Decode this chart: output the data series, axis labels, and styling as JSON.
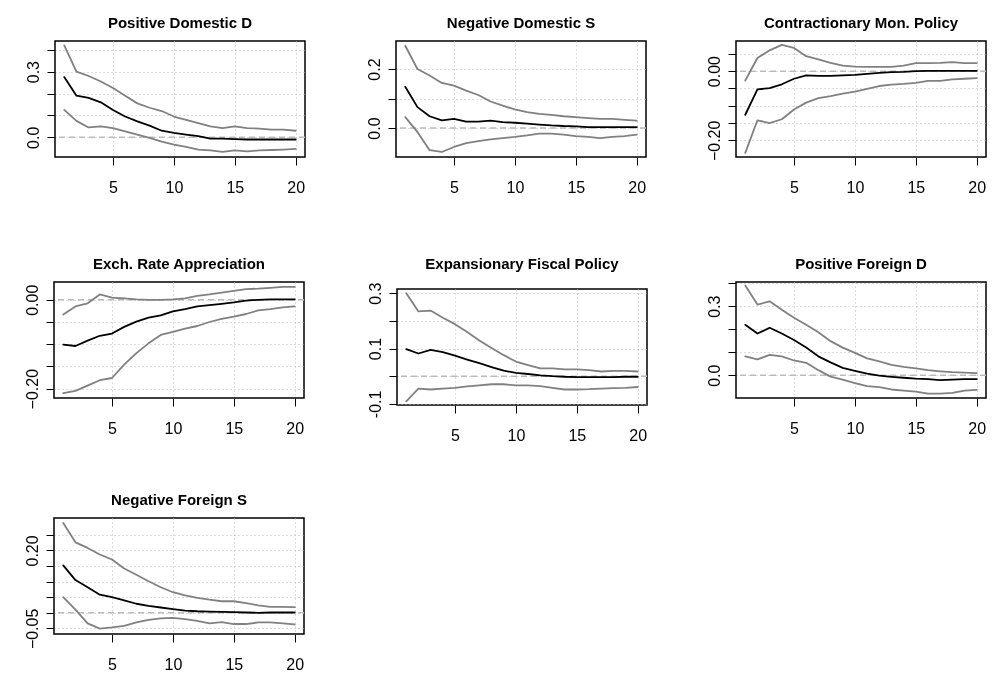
{
  "chart_data": [
    {
      "type": "line",
      "title": "Positive Domestic D",
      "x": [
        1,
        2,
        3,
        4,
        5,
        6,
        7,
        8,
        9,
        10,
        11,
        12,
        13,
        14,
        15,
        16,
        17,
        18,
        19,
        20
      ],
      "xlim": [
        0.24,
        20.76
      ],
      "xticks": [
        5,
        10,
        15,
        20
      ],
      "ylim": [
        -0.09,
        0.44
      ],
      "yticks": [
        {
          "value": 0,
          "label": "0.0"
        },
        {
          "value": 0.1,
          "label": null
        },
        {
          "value": 0.2,
          "label": null
        },
        0.3,
        {
          "value": 0.4,
          "label": null
        }
      ],
      "grid": true,
      "ref_lines": [
        {
          "axis": "y",
          "value": 0,
          "color": "#bbbbbb",
          "line_style": "dashed"
        }
      ],
      "series": [
        {
          "color": "#808080",
          "values": [
            0.42,
            0.3,
            0.28,
            0.255,
            0.225,
            0.19,
            0.155,
            0.135,
            0.12,
            0.095,
            0.08,
            0.065,
            0.05,
            0.042,
            0.05,
            0.042,
            0.04,
            0.035,
            0.035,
            0.03
          ]
        },
        {
          "color": "#000000",
          "values": [
            0.275,
            0.19,
            0.18,
            0.16,
            0.125,
            0.095,
            0.073,
            0.053,
            0.03,
            0.02,
            0.012,
            0.005,
            -0.006,
            -0.006,
            -0.008,
            -0.01,
            -0.01,
            -0.01,
            -0.01,
            -0.01
          ]
        },
        {
          "color": "#808080",
          "values": [
            0.125,
            0.075,
            0.045,
            0.05,
            0.042,
            0.027,
            0.012,
            -0.003,
            -0.02,
            -0.033,
            -0.044,
            -0.056,
            -0.06,
            -0.067,
            -0.06,
            -0.064,
            -0.06,
            -0.058,
            -0.056,
            -0.053
          ]
        }
      ]
    },
    {
      "type": "line",
      "title": "Negative Domestic S",
      "x": [
        1,
        2,
        3,
        4,
        5,
        6,
        7,
        8,
        9,
        10,
        11,
        12,
        13,
        14,
        15,
        16,
        17,
        18,
        19,
        20
      ],
      "xlim": [
        0.24,
        20.76
      ],
      "xticks": [
        5,
        10,
        15,
        20
      ],
      "ylim": [
        -0.098,
        0.295
      ],
      "yticks": [
        {
          "value": 0,
          "label": "0.0"
        },
        {
          "value": 0.1,
          "label": null
        },
        0.2
      ],
      "grid": true,
      "ref_lines": [
        {
          "axis": "y",
          "value": 0,
          "color": "#bbbbbb",
          "line_style": "dashed"
        }
      ],
      "series": [
        {
          "color": "#808080",
          "values": [
            0.279,
            0.2,
            0.178,
            0.153,
            0.144,
            0.127,
            0.112,
            0.09,
            0.076,
            0.063,
            0.054,
            0.048,
            0.045,
            0.04,
            0.037,
            0.034,
            0.031,
            0.031,
            0.028,
            0.025
          ]
        },
        {
          "color": "#000000",
          "values": [
            0.14,
            0.071,
            0.04,
            0.026,
            0.031,
            0.022,
            0.022,
            0.025,
            0.02,
            0.018,
            0.015,
            0.012,
            0.009,
            0.007,
            0.006,
            0.003,
            0.003,
            0.003,
            0.003,
            0.003
          ]
        },
        {
          "color": "#808080",
          "values": [
            0.037,
            -0.013,
            -0.075,
            -0.081,
            -0.064,
            -0.051,
            -0.044,
            -0.038,
            -0.034,
            -0.03,
            -0.025,
            -0.019,
            -0.019,
            -0.022,
            -0.027,
            -0.03,
            -0.034,
            -0.03,
            -0.027,
            -0.022
          ]
        }
      ]
    },
    {
      "type": "line",
      "title": "Contractionary Mon. Policy",
      "x": [
        1,
        2,
        3,
        4,
        5,
        6,
        7,
        8,
        9,
        10,
        11,
        12,
        13,
        14,
        15,
        16,
        17,
        18,
        19,
        20
      ],
      "xlim": [
        0.24,
        20.76
      ],
      "xticks": [
        5,
        10,
        15,
        20
      ],
      "ylim": [
        -0.248,
        0.087
      ],
      "yticks": [
        {
          "value": 0.05,
          "label": null
        },
        {
          "value": 0,
          "label": "0.00"
        },
        {
          "value": -0.05,
          "label": null
        },
        {
          "value": -0.1,
          "label": null
        },
        {
          "value": -0.15,
          "label": null
        },
        {
          "value": -0.2,
          "label": "−0.20"
        }
      ],
      "grid": true,
      "ref_lines": [
        {
          "axis": "y",
          "value": 0,
          "color": "#bbbbbb",
          "line_style": "dashed"
        }
      ],
      "series": [
        {
          "color": "#808080",
          "values": [
            -0.027,
            0.038,
            0.06,
            0.076,
            0.067,
            0.043,
            0.034,
            0.024,
            0.016,
            0.013,
            0.012,
            0.012,
            0.012,
            0.016,
            0.023,
            0.023,
            0.024,
            0.026,
            0.023,
            0.023
          ]
        },
        {
          "color": "#000000",
          "values": [
            -0.126,
            -0.053,
            -0.049,
            -0.038,
            -0.022,
            -0.012,
            -0.014,
            -0.014,
            -0.012,
            -0.011,
            -0.008,
            -0.005,
            -0.003,
            -0.002,
            0,
            0.001,
            0.001,
            0.001,
            0.001,
            0.001
          ]
        },
        {
          "color": "#808080",
          "values": [
            -0.236,
            -0.142,
            -0.15,
            -0.139,
            -0.111,
            -0.091,
            -0.078,
            -0.072,
            -0.065,
            -0.059,
            -0.051,
            -0.043,
            -0.039,
            -0.037,
            -0.034,
            -0.028,
            -0.028,
            -0.024,
            -0.022,
            -0.02
          ]
        }
      ]
    },
    {
      "type": "line",
      "title": "Exch. Rate Appreciation",
      "x": [
        1,
        2,
        3,
        4,
        5,
        6,
        7,
        8,
        9,
        10,
        11,
        12,
        13,
        14,
        15,
        16,
        17,
        18,
        19,
        20
      ],
      "xlim": [
        0.24,
        20.76
      ],
      "xticks": [
        5,
        10,
        15,
        20
      ],
      "ylim": [
        -0.221,
        0.04
      ],
      "yticks": [
        {
          "value": 0,
          "label": "0.00"
        },
        {
          "value": -0.05,
          "label": null
        },
        {
          "value": -0.1,
          "label": null
        },
        {
          "value": -0.15,
          "label": null
        },
        {
          "value": -0.2,
          "label": "−0.20"
        }
      ],
      "grid": true,
      "ref_lines": [
        {
          "axis": "y",
          "value": 0,
          "color": "#bbbbbb",
          "line_style": "dashed"
        }
      ],
      "series": [
        {
          "color": "#808080",
          "values": [
            -0.033,
            -0.015,
            -0.008,
            0.012,
            0.005,
            0.003,
            0.001,
            0,
            0,
            0.001,
            0.003,
            0.009,
            0.012,
            0.016,
            0.02,
            0.024,
            0.025,
            0.027,
            0.029,
            0.029
          ]
        },
        {
          "color": "#000000",
          "values": [
            -0.101,
            -0.104,
            -0.092,
            -0.081,
            -0.076,
            -0.061,
            -0.049,
            -0.04,
            -0.035,
            -0.026,
            -0.021,
            -0.015,
            -0.012,
            -0.009,
            -0.006,
            -0.002,
            0,
            0.001,
            0.001,
            0.001
          ]
        },
        {
          "color": "#808080",
          "values": [
            -0.21,
            -0.205,
            -0.193,
            -0.181,
            -0.176,
            -0.146,
            -0.12,
            -0.098,
            -0.079,
            -0.072,
            -0.065,
            -0.059,
            -0.05,
            -0.043,
            -0.038,
            -0.032,
            -0.024,
            -0.021,
            -0.017,
            -0.015
          ]
        }
      ]
    },
    {
      "type": "line",
      "title": "Expansionary Fiscal Policy",
      "x": [
        1,
        2,
        3,
        4,
        5,
        6,
        7,
        8,
        9,
        10,
        11,
        12,
        13,
        14,
        15,
        16,
        17,
        18,
        19,
        20
      ],
      "xlim": [
        0.24,
        20.76
      ],
      "xticks": [
        5,
        10,
        15,
        20
      ],
      "ylim": [
        -0.104,
        0.315
      ],
      "yticks": [
        0.3,
        {
          "value": 0.2,
          "label": null
        },
        0.1,
        {
          "value": 0,
          "label": null
        },
        -0.1
      ],
      "grid": true,
      "ref_lines": [
        {
          "axis": "y",
          "value": 0,
          "color": "#bbbbbb",
          "line_style": "dashed"
        }
      ],
      "series": [
        {
          "color": "#808080",
          "values": [
            0.3,
            0.234,
            0.237,
            0.211,
            0.188,
            0.16,
            0.129,
            0.102,
            0.076,
            0.053,
            0.04,
            0.028,
            0.028,
            0.025,
            0.025,
            0.022,
            0.017,
            0.019,
            0.019,
            0.017
          ]
        },
        {
          "color": "#000000",
          "values": [
            0.098,
            0.082,
            0.095,
            0.087,
            0.074,
            0.06,
            0.047,
            0.033,
            0.02,
            0.012,
            0.008,
            0.003,
            0,
            -0.002,
            -0.003,
            -0.003,
            -0.003,
            -0.003,
            -0.002,
            -0.002
          ]
        },
        {
          "color": "#808080",
          "values": [
            -0.091,
            -0.045,
            -0.048,
            -0.045,
            -0.042,
            -0.037,
            -0.033,
            -0.029,
            -0.029,
            -0.033,
            -0.033,
            -0.036,
            -0.042,
            -0.048,
            -0.048,
            -0.047,
            -0.045,
            -0.043,
            -0.042,
            -0.039
          ]
        }
      ]
    },
    {
      "type": "line",
      "title": "Positive Foreign D",
      "x": [
        1,
        2,
        3,
        4,
        5,
        6,
        7,
        8,
        9,
        10,
        11,
        12,
        13,
        14,
        15,
        16,
        17,
        18,
        19,
        20
      ],
      "xlim": [
        0.24,
        20.76
      ],
      "xticks": [
        5,
        10,
        15,
        20
      ],
      "ylim": [
        -0.099,
        0.405
      ],
      "yticks": [
        {
          "value": 0,
          "label": "0.0"
        },
        {
          "value": 0.1,
          "label": null
        },
        {
          "value": 0.2,
          "label": null
        },
        0.3,
        {
          "value": 0.4,
          "label": null
        }
      ],
      "grid": true,
      "ref_lines": [
        {
          "axis": "y",
          "value": 0,
          "color": "#bbbbbb",
          "line_style": "dashed"
        }
      ],
      "series": [
        {
          "color": "#808080",
          "values": [
            0.39,
            0.307,
            0.321,
            0.284,
            0.25,
            0.219,
            0.187,
            0.148,
            0.12,
            0.097,
            0.073,
            0.06,
            0.045,
            0.036,
            0.03,
            0.022,
            0.017,
            0.013,
            0.011,
            0.009
          ]
        },
        {
          "color": "#000000",
          "values": [
            0.219,
            0.181,
            0.206,
            0.181,
            0.153,
            0.12,
            0.082,
            0.056,
            0.032,
            0.019,
            0.007,
            -0.002,
            -0.007,
            -0.011,
            -0.015,
            -0.017,
            -0.021,
            -0.019,
            -0.017,
            -0.017
          ]
        },
        {
          "color": "#808080",
          "values": [
            0.082,
            0.069,
            0.088,
            0.082,
            0.064,
            0.054,
            0.022,
            -0.006,
            -0.019,
            -0.034,
            -0.047,
            -0.052,
            -0.062,
            -0.067,
            -0.071,
            -0.08,
            -0.08,
            -0.077,
            -0.067,
            -0.064
          ]
        }
      ]
    },
    {
      "type": "line",
      "title": "Negative Foreign S",
      "x": [
        1,
        2,
        3,
        4,
        5,
        6,
        7,
        8,
        9,
        10,
        11,
        12,
        13,
        14,
        15,
        16,
        17,
        18,
        19,
        20
      ],
      "xlim": [
        0.24,
        20.76
      ],
      "xticks": [
        5,
        10,
        15,
        20
      ],
      "ylim": [
        -0.068,
        0.304
      ],
      "yticks": [
        {
          "value": 0.25,
          "label": null
        },
        {
          "value": 0.2,
          "label": "0.20"
        },
        {
          "value": 0.15,
          "label": null
        },
        {
          "value": 0.1,
          "label": null
        },
        {
          "value": 0.05,
          "label": null
        },
        {
          "value": 0,
          "label": null
        },
        {
          "value": -0.05,
          "label": "−0.05"
        }
      ],
      "grid": true,
      "ref_lines": [
        {
          "axis": "y",
          "value": 0,
          "color": "#bbbbbb",
          "line_style": "dashed"
        }
      ],
      "series": [
        {
          "color": "#808080",
          "values": [
            0.288,
            0.226,
            0.208,
            0.187,
            0.171,
            0.142,
            0.122,
            0.101,
            0.082,
            0.066,
            0.056,
            0.048,
            0.042,
            0.037,
            0.037,
            0.031,
            0.024,
            0.019,
            0.019,
            0.018
          ]
        },
        {
          "color": "#000000",
          "values": [
            0.152,
            0.105,
            0.082,
            0.058,
            0.05,
            0.04,
            0.029,
            0.022,
            0.017,
            0.012,
            0.007,
            0.005,
            0.004,
            0.003,
            0.002,
            0.001,
            0,
            0.001,
            0.001,
            0.001
          ]
        },
        {
          "color": "#808080",
          "values": [
            0.05,
            0.01,
            -0.034,
            -0.051,
            -0.047,
            -0.042,
            -0.031,
            -0.023,
            -0.018,
            -0.016,
            -0.02,
            -0.026,
            -0.034,
            -0.03,
            -0.036,
            -0.036,
            -0.031,
            -0.031,
            -0.034,
            -0.037
          ]
        }
      ]
    }
  ]
}
